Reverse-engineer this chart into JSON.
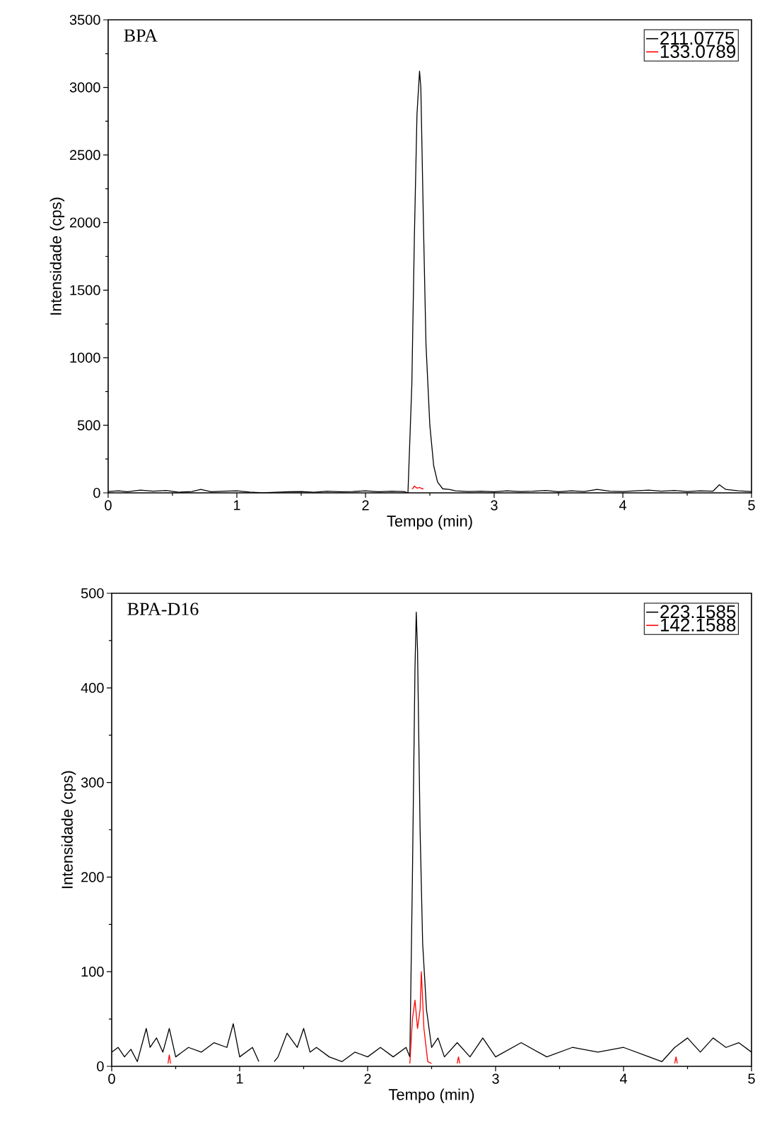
{
  "chart_data": [
    {
      "type": "line",
      "annotations": [
        "BPA"
      ],
      "xlabel": "Tempo (min)",
      "ylabel": "Intensidade (cps)",
      "xlim": [
        0,
        5
      ],
      "ylim": [
        0,
        3500
      ],
      "xticks": [
        0,
        1,
        2,
        3,
        4,
        5
      ],
      "yticks": [
        0,
        500,
        1000,
        1500,
        2000,
        2500,
        3000,
        3500
      ],
      "legend": "top right",
      "marker": "none",
      "line_style": "solid",
      "series": [
        {
          "name": "211.0775",
          "color": "#000000",
          "x": [
            0,
            0.08,
            0.15,
            0.25,
            0.35,
            0.45,
            0.55,
            0.65,
            0.72,
            0.8,
            0.9,
            1.0,
            1.1,
            1.2,
            1.3,
            1.4,
            1.5,
            1.6,
            1.7,
            1.8,
            1.9,
            2.0,
            2.1,
            2.2,
            2.3,
            2.33,
            2.36,
            2.38,
            2.4,
            2.42,
            2.43,
            2.45,
            2.47,
            2.5,
            2.53,
            2.56,
            2.6,
            2.65,
            2.7,
            2.8,
            2.9,
            3.0,
            3.1,
            3.2,
            3.3,
            3.4,
            3.5,
            3.6,
            3.7,
            3.8,
            3.9,
            4.0,
            4.1,
            4.2,
            4.3,
            4.4,
            4.5,
            4.6,
            4.7,
            4.75,
            4.8,
            4.9,
            5.0
          ],
          "values": [
            10,
            15,
            8,
            20,
            12,
            18,
            5,
            10,
            25,
            8,
            12,
            15,
            6,
            0,
            5,
            8,
            10,
            5,
            12,
            8,
            10,
            15,
            8,
            12,
            10,
            0,
            800,
            1900,
            2800,
            3120,
            3000,
            2000,
            1100,
            500,
            200,
            80,
            30,
            25,
            15,
            10,
            12,
            8,
            15,
            10,
            12,
            18,
            8,
            15,
            10,
            25,
            12,
            10,
            15,
            20,
            12,
            18,
            10,
            15,
            12,
            60,
            25,
            15,
            10
          ]
        },
        {
          "name": "133.0789",
          "color": "#ff0000",
          "x": [
            2.36,
            2.37,
            2.38,
            2.4,
            2.42,
            2.44,
            2.45
          ],
          "values": [
            30,
            35,
            50,
            35,
            40,
            30,
            30
          ]
        }
      ]
    },
    {
      "type": "line",
      "annotations": [
        "BPA-D16"
      ],
      "xlabel": "Tempo (min)",
      "ylabel": "Intensidade (cps)",
      "xlim": [
        0,
        5
      ],
      "ylim": [
        0,
        500
      ],
      "xticks": [
        0,
        1,
        2,
        3,
        4,
        5
      ],
      "yticks": [
        0,
        100,
        200,
        300,
        400,
        500
      ],
      "legend": "top right",
      "marker": "none",
      "line_style": "solid",
      "series": [
        {
          "name": "223.1585",
          "color": "#000000",
          "x": [
            0,
            0.05,
            0.1,
            0.15,
            0.2,
            0.27,
            0.3,
            0.35,
            0.4,
            0.45,
            0.5,
            0.6,
            0.7,
            0.8,
            0.9,
            0.95,
            1.0,
            1.05,
            1.1,
            1.15,
            1.2,
            1.27,
            1.3,
            1.37,
            1.45,
            1.5,
            1.55,
            1.6,
            1.7,
            1.8,
            1.9,
            2.0,
            2.1,
            2.2,
            2.3,
            2.33,
            2.35,
            2.37,
            2.38,
            2.39,
            2.41,
            2.43,
            2.46,
            2.5,
            2.55,
            2.6,
            2.7,
            2.8,
            2.9,
            3.0,
            3.2,
            3.4,
            3.6,
            3.8,
            4.0,
            4.2,
            4.3,
            4.4,
            4.5,
            4.6,
            4.7,
            4.8,
            4.9,
            5.0
          ],
          "values": [
            15,
            20,
            10,
            18,
            5,
            40,
            20,
            30,
            15,
            40,
            10,
            20,
            15,
            25,
            20,
            45,
            10,
            15,
            20,
            5,
            null,
            5,
            10,
            35,
            20,
            40,
            15,
            20,
            10,
            5,
            15,
            10,
            20,
            10,
            20,
            10,
            200,
            420,
            480,
            440,
            250,
            130,
            60,
            20,
            30,
            10,
            25,
            10,
            30,
            10,
            25,
            10,
            20,
            15,
            20,
            10,
            5,
            20,
            30,
            15,
            30,
            20,
            25,
            15
          ]
        },
        {
          "name": "142.1588",
          "color": "#ff0000",
          "x": [
            0.44,
            0.45,
            0.46,
            1.0,
            2.33,
            2.35,
            2.37,
            2.39,
            2.41,
            2.42,
            2.44,
            2.47,
            2.5,
            2.6,
            2.7,
            2.71,
            2.72,
            3.5,
            4.4,
            4.41,
            4.42
          ],
          "values": [
            3,
            12,
            3,
            null,
            3,
            50,
            70,
            40,
            60,
            100,
            40,
            5,
            3,
            null,
            3,
            10,
            3,
            null,
            3,
            10,
            3
          ]
        }
      ]
    }
  ]
}
